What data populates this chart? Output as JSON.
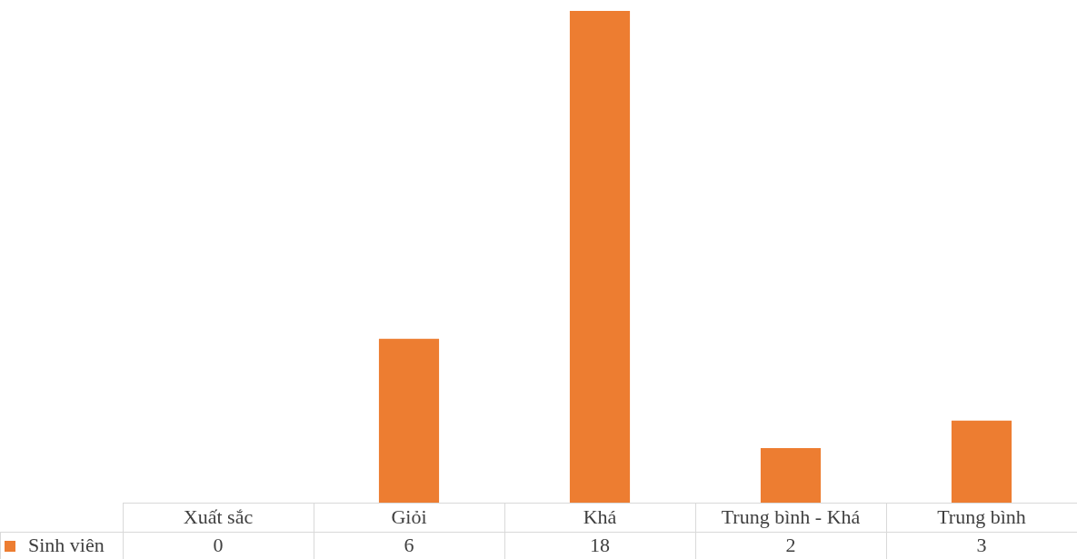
{
  "chart_data": {
    "type": "bar",
    "categories": [
      "Xuất sắc",
      "Giỏi",
      "Khá",
      "Trung bình - Khá",
      "Trung bình"
    ],
    "series": [
      {
        "name": "Sinh viên",
        "color": "#ed7d31",
        "values": [
          0,
          6,
          18,
          2,
          3
        ]
      }
    ],
    "data_labels": true,
    "legend": "bottom"
  }
}
